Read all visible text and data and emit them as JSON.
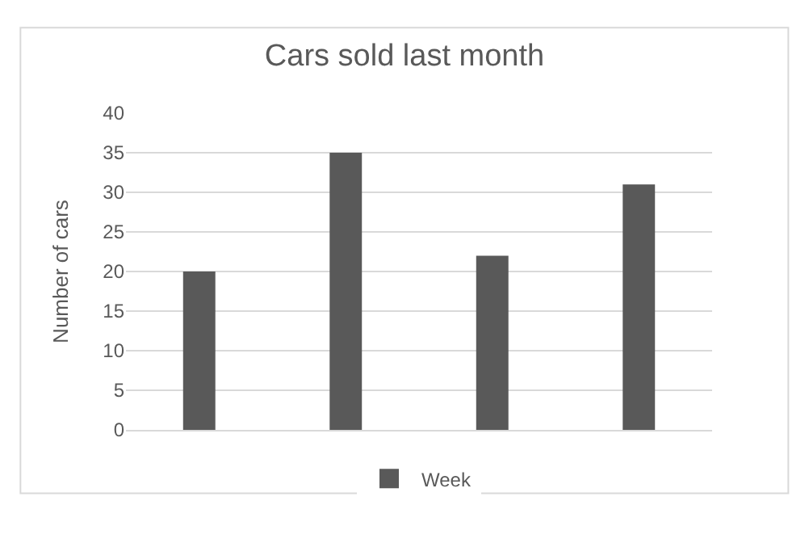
{
  "chart_data": {
    "type": "bar",
    "title": "Cars sold last month",
    "ylabel": "Number of cars",
    "categories": [
      null,
      null,
      null,
      null
    ],
    "series": [
      {
        "name": "Week",
        "color": "#595959",
        "values": [
          20,
          35,
          22,
          31
        ]
      }
    ],
    "ylim": [
      0,
      40
    ],
    "yticks": [
      0,
      5,
      10,
      15,
      20,
      25,
      30,
      35,
      40
    ],
    "grid": "y",
    "legend": "bottom"
  }
}
